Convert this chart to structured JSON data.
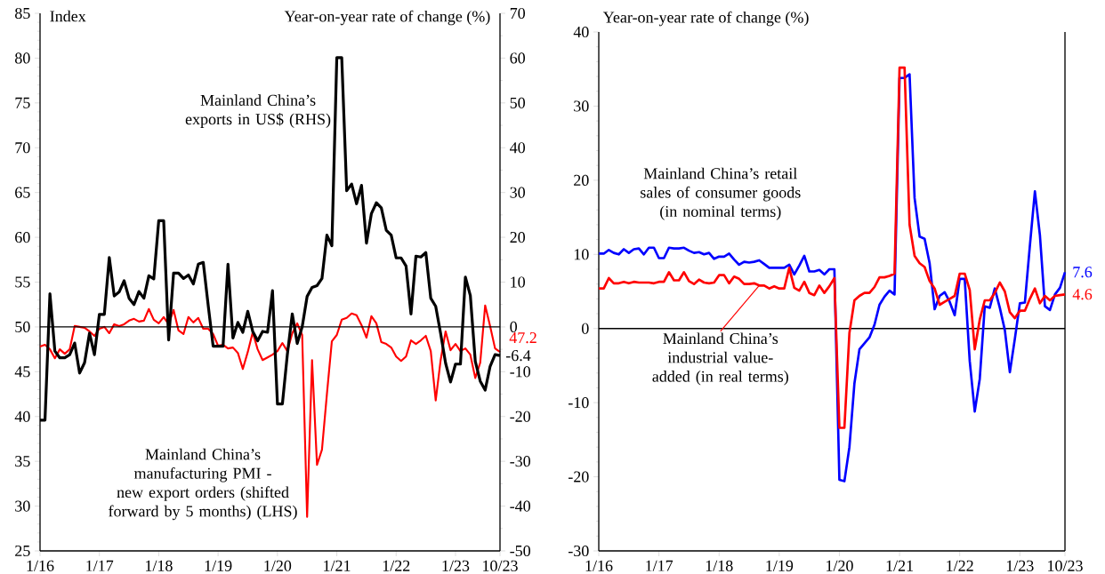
{
  "chart_data": [
    {
      "type": "line",
      "xlabel": null,
      "ylabel": "Index",
      "y2label": "Year-on-year rate of change (%)",
      "x": [
        "2016-01",
        "2016-02",
        "2016-03",
        "2016-04",
        "2016-05",
        "2016-06",
        "2016-07",
        "2016-08",
        "2016-09",
        "2016-10",
        "2016-11",
        "2016-12",
        "2017-01",
        "2017-02",
        "2017-03",
        "2017-04",
        "2017-05",
        "2017-06",
        "2017-07",
        "2017-08",
        "2017-09",
        "2017-10",
        "2017-11",
        "2017-12",
        "2018-01",
        "2018-02",
        "2018-03",
        "2018-04",
        "2018-05",
        "2018-06",
        "2018-07",
        "2018-08",
        "2018-09",
        "2018-10",
        "2018-11",
        "2018-12",
        "2019-01",
        "2019-02",
        "2019-03",
        "2019-04",
        "2019-05",
        "2019-06",
        "2019-07",
        "2019-08",
        "2019-09",
        "2019-10",
        "2019-11",
        "2019-12",
        "2020-01",
        "2020-02",
        "2020-03",
        "2020-04",
        "2020-05",
        "2020-06",
        "2020-07",
        "2020-08",
        "2020-09",
        "2020-10",
        "2020-11",
        "2020-12",
        "2021-01",
        "2021-02",
        "2021-03",
        "2021-04",
        "2021-05",
        "2021-06",
        "2021-07",
        "2021-08",
        "2021-09",
        "2021-10",
        "2021-11",
        "2021-12",
        "2022-01",
        "2022-02",
        "2022-03",
        "2022-04",
        "2022-05",
        "2022-06",
        "2022-07",
        "2022-08",
        "2022-09",
        "2022-10",
        "2022-11",
        "2022-12",
        "2023-01",
        "2023-02",
        "2023-03",
        "2023-04",
        "2023-05",
        "2023-06",
        "2023-07",
        "2023-08",
        "2023-09",
        "2023-10"
      ],
      "xlim": [
        "2016-01",
        "2023-10"
      ],
      "xticks": [
        {
          "value": "2016-01",
          "label": "1/16"
        },
        {
          "value": "2017-01",
          "label": "1/17"
        },
        {
          "value": "2018-01",
          "label": "1/18"
        },
        {
          "value": "2019-01",
          "label": "1/19"
        },
        {
          "value": "2020-01",
          "label": "1/20"
        },
        {
          "value": "2021-01",
          "label": "1/21"
        },
        {
          "value": "2022-01",
          "label": "1/22"
        },
        {
          "value": "2023-01",
          "label": "1/23"
        },
        {
          "value": "2023-10",
          "label": "10/23"
        }
      ],
      "ylim": [
        25,
        85
      ],
      "yticks": [
        25,
        30,
        35,
        40,
        45,
        50,
        55,
        60,
        65,
        70,
        75,
        80,
        85
      ],
      "y2lim": [
        -50,
        70
      ],
      "y2ticks": [
        -50,
        -40,
        -30,
        -20,
        -10,
        0,
        10,
        20,
        30,
        40,
        50,
        60,
        70
      ],
      "ref_lines": [
        {
          "axis": "y2",
          "value": 0,
          "color": "#000000"
        }
      ],
      "series": [
        {
          "name": "Mainland China’s exports in US$ (RHS)",
          "color": "#000000",
          "axis": "y2",
          "values": [
            -20.8,
            -20.8,
            7.4,
            -5.4,
            -6.9,
            -6.9,
            -6.2,
            -3.6,
            -10.3,
            -8,
            -1.4,
            -6.2,
            2.8,
            2.8,
            15.5,
            6.9,
            7.8,
            10.3,
            6.4,
            5,
            7.9,
            6.4,
            11.4,
            10.7,
            23.7,
            23.7,
            -2.9,
            12,
            12,
            10.8,
            11.6,
            9.6,
            14,
            14.4,
            4.8,
            -4.3,
            -4.3,
            -4.3,
            14,
            -2.5,
            1,
            -1.2,
            3.5,
            -1,
            -3.1,
            -1,
            -1.2,
            8.1,
            -17.2,
            -17.2,
            -6.2,
            2.9,
            -3.7,
            0,
            6.8,
            8.8,
            9.2,
            10.8,
            20.5,
            18.1,
            60.1,
            60.1,
            30.4,
            31.9,
            27.5,
            31.6,
            18.7,
            25.3,
            27.7,
            26.6,
            21.6,
            20.5,
            15.4,
            15.4,
            13.6,
            2.9,
            15.8,
            15.6,
            16.6,
            6.4,
            4.6,
            -1.5,
            -8.1,
            -12.3,
            -8.3,
            -8.3,
            11.1,
            7,
            -7.7,
            -12.1,
            -14.1,
            -8.8,
            -6.2,
            -6.4
          ],
          "value_labels": [
            null,
            null,
            null,
            null,
            null,
            null,
            null,
            null,
            null,
            null,
            null,
            null,
            null,
            null,
            null,
            null,
            null,
            null,
            null,
            null,
            null,
            null,
            null,
            null,
            null,
            null,
            null,
            null,
            null,
            null,
            null,
            null,
            null,
            null,
            null,
            null,
            null,
            null,
            null,
            null,
            null,
            null,
            null,
            null,
            null,
            null,
            null,
            null,
            null,
            null,
            null,
            null,
            null,
            null,
            null,
            null,
            null,
            null,
            null,
            null,
            null,
            null,
            null,
            null,
            null,
            null,
            null,
            null,
            null,
            null,
            null,
            null,
            null,
            null,
            null,
            null,
            null,
            null,
            null,
            null,
            null,
            null,
            null,
            null,
            null,
            null,
            null,
            null,
            null,
            null,
            null,
            null,
            null,
            "-6.4"
          ]
        },
        {
          "name": "Mainland China’s manufacturing PMI - new export orders (shifted forward by 5 months) (LHS)",
          "color": "#ff0000",
          "values": [
            47.8,
            48,
            47.5,
            46.5,
            47.5,
            47,
            47.5,
            50.1,
            50,
            49.9,
            49.5,
            49,
            49.8,
            50,
            49.3,
            50.3,
            50.1,
            50.3,
            50.7,
            50.9,
            50.6,
            50.7,
            52,
            50.8,
            50.4,
            51.1,
            50.3,
            51.9,
            49.6,
            49.2,
            51.1,
            50.5,
            51,
            49.8,
            49.8,
            49.2,
            47.9,
            48,
            47.6,
            47.7,
            47.1,
            45.3,
            47.2,
            49.4,
            47.5,
            46.3,
            46.6,
            46.9,
            47.3,
            48.2,
            47.3,
            49.3,
            50.4,
            49.1,
            28.8,
            46.3,
            34.6,
            36.3,
            42.5,
            48.4,
            49.1,
            50.8,
            51,
            51.5,
            51.3,
            50.2,
            48.8,
            51.2,
            50.4,
            48.3,
            48.1,
            47.7,
            46.7,
            46.2,
            46.7,
            48.5,
            48.1,
            48.5,
            49,
            47.3,
            41.8,
            46.3,
            49.5,
            47.4,
            48.1,
            47.3,
            47.6,
            46.9,
            44.3,
            46,
            52.4,
            50.1,
            47.6,
            47.2
          ],
          "value_labels": [
            null,
            null,
            null,
            null,
            null,
            null,
            null,
            null,
            null,
            null,
            null,
            null,
            null,
            null,
            null,
            null,
            null,
            null,
            null,
            null,
            null,
            null,
            null,
            null,
            null,
            null,
            null,
            null,
            null,
            null,
            null,
            null,
            null,
            null,
            null,
            null,
            null,
            null,
            null,
            null,
            null,
            null,
            null,
            null,
            null,
            null,
            null,
            null,
            null,
            null,
            null,
            null,
            null,
            null,
            null,
            null,
            null,
            null,
            null,
            null,
            null,
            null,
            null,
            null,
            null,
            null,
            null,
            null,
            null,
            null,
            null,
            null,
            null,
            null,
            null,
            null,
            null,
            null,
            null,
            null,
            null,
            null,
            null,
            null,
            null,
            null,
            null,
            null,
            null,
            null,
            null,
            null,
            null,
            "47.2"
          ]
        }
      ]
    },
    {
      "type": "line",
      "ylabel": "Year-on-year rate of change (%)",
      "x": [
        "2016-01",
        "2016-02",
        "2016-03",
        "2016-04",
        "2016-05",
        "2016-06",
        "2016-07",
        "2016-08",
        "2016-09",
        "2016-10",
        "2016-11",
        "2016-12",
        "2017-01",
        "2017-02",
        "2017-03",
        "2017-04",
        "2017-05",
        "2017-06",
        "2017-07",
        "2017-08",
        "2017-09",
        "2017-10",
        "2017-11",
        "2017-12",
        "2018-01",
        "2018-02",
        "2018-03",
        "2018-04",
        "2018-05",
        "2018-06",
        "2018-07",
        "2018-08",
        "2018-09",
        "2018-10",
        "2018-11",
        "2018-12",
        "2019-01",
        "2019-02",
        "2019-03",
        "2019-04",
        "2019-05",
        "2019-06",
        "2019-07",
        "2019-08",
        "2019-09",
        "2019-10",
        "2019-11",
        "2019-12",
        "2020-01",
        "2020-02",
        "2020-03",
        "2020-04",
        "2020-05",
        "2020-06",
        "2020-07",
        "2020-08",
        "2020-09",
        "2020-10",
        "2020-11",
        "2020-12",
        "2021-01",
        "2021-02",
        "2021-03",
        "2021-04",
        "2021-05",
        "2021-06",
        "2021-07",
        "2021-08",
        "2021-09",
        "2021-10",
        "2021-11",
        "2021-12",
        "2022-01",
        "2022-02",
        "2022-03",
        "2022-04",
        "2022-05",
        "2022-06",
        "2022-07",
        "2022-08",
        "2022-09",
        "2022-10",
        "2022-11",
        "2022-12",
        "2023-01",
        "2023-02",
        "2023-03",
        "2023-04",
        "2023-05",
        "2023-06",
        "2023-07",
        "2023-08",
        "2023-09",
        "2023-10"
      ],
      "xlim": [
        "2016-01",
        "2023-10"
      ],
      "xticks": [
        {
          "value": "2016-01",
          "label": "1/16"
        },
        {
          "value": "2017-01",
          "label": "1/17"
        },
        {
          "value": "2018-01",
          "label": "1/18"
        },
        {
          "value": "2019-01",
          "label": "1/19"
        },
        {
          "value": "2020-01",
          "label": "1/20"
        },
        {
          "value": "2021-01",
          "label": "1/21"
        },
        {
          "value": "2022-01",
          "label": "1/22"
        },
        {
          "value": "2023-01",
          "label": "1/23"
        },
        {
          "value": "2023-10",
          "label": "10/23"
        }
      ],
      "ylim": [
        -30,
        40
      ],
      "yticks": [
        -30,
        -20,
        -10,
        0,
        10,
        20,
        30,
        40
      ],
      "ref_lines": [
        {
          "axis": "y",
          "value": 0,
          "color": "#000000"
        }
      ],
      "series": [
        {
          "name": "Mainland China’s retail sales of consumer goods (in nominal terms)",
          "color": "#0000ff",
          "values": [
            10.1,
            10.1,
            10.6,
            10.2,
            10,
            10.7,
            10.2,
            10.7,
            10.8,
            10,
            10.9,
            10.9,
            9.5,
            9.5,
            10.9,
            10.8,
            10.8,
            10.9,
            10.5,
            10.2,
            10.3,
            10,
            10.2,
            9.4,
            9.7,
            9.7,
            10.1,
            9.3,
            8.6,
            9,
            8.9,
            9,
            9.2,
            8.7,
            8.2,
            8.2,
            8.2,
            8.2,
            8.6,
            7.3,
            8.5,
            9.8,
            7.7,
            7.7,
            7.9,
            7.3,
            8,
            8,
            -20.4,
            -20.6,
            -16,
            -7.4,
            -2.8,
            -2,
            -1.2,
            0.5,
            3.2,
            4.3,
            5.1,
            4.6,
            33.8,
            33.8,
            34.3,
            17.6,
            12.4,
            12.1,
            8.8,
            2.6,
            4.4,
            4.9,
            3.6,
            1.8,
            6.7,
            6.7,
            -4.4,
            -11.2,
            -6.8,
            3,
            2.8,
            5.4,
            2.8,
            -0.2,
            -5.9,
            -1.4,
            3.4,
            3.5,
            11.2,
            18.5,
            12.6,
            3,
            2.5,
            4.6,
            5.5,
            7.6
          ],
          "value_labels": [
            null,
            null,
            null,
            null,
            null,
            null,
            null,
            null,
            null,
            null,
            null,
            null,
            null,
            null,
            null,
            null,
            null,
            null,
            null,
            null,
            null,
            null,
            null,
            null,
            null,
            null,
            null,
            null,
            null,
            null,
            null,
            null,
            null,
            null,
            null,
            null,
            null,
            null,
            null,
            null,
            null,
            null,
            null,
            null,
            null,
            null,
            null,
            null,
            null,
            null,
            null,
            null,
            null,
            null,
            null,
            null,
            null,
            null,
            null,
            null,
            null,
            null,
            null,
            null,
            null,
            null,
            null,
            null,
            null,
            null,
            null,
            null,
            null,
            null,
            null,
            null,
            null,
            null,
            null,
            null,
            null,
            null,
            null,
            null,
            null,
            null,
            null,
            null,
            null,
            null,
            null,
            null,
            null,
            "7.6"
          ]
        },
        {
          "name": "Mainland China’s industrial value-added (in real terms)",
          "color": "#ff0000",
          "values": [
            5.4,
            5.4,
            6.8,
            6.1,
            6.1,
            6.3,
            6.1,
            6.3,
            6.2,
            6.2,
            6.2,
            6.1,
            6.3,
            6.3,
            7.6,
            6.5,
            6.5,
            7.6,
            6.4,
            6,
            6.6,
            6.2,
            6.1,
            6.2,
            7.2,
            7.2,
            6.1,
            7,
            6.7,
            6,
            6,
            6.1,
            5.8,
            5.8,
            5.4,
            5.7,
            5.4,
            5.4,
            8.2,
            5.5,
            5.1,
            6.3,
            4.8,
            4.5,
            5.8,
            4.8,
            5.7,
            6.8,
            -13.4,
            -13.4,
            -0.6,
            3.8,
            4.4,
            4.8,
            4.8,
            5.6,
            6.9,
            6.9,
            7.1,
            7.4,
            35.2,
            35.2,
            14,
            9.8,
            8.8,
            8.3,
            6.4,
            5.4,
            3.2,
            3.6,
            4,
            4.4,
            7.4,
            7.4,
            5.2,
            -2.8,
            1.2,
            3.8,
            3.8,
            4.8,
            6.2,
            5,
            2.2,
            1.4,
            2.4,
            2.4,
            4,
            5.4,
            3.4,
            4.4,
            3.8,
            4.4,
            4.5,
            4.6
          ],
          "value_labels": [
            null,
            null,
            null,
            null,
            null,
            null,
            null,
            null,
            null,
            null,
            null,
            null,
            null,
            null,
            null,
            null,
            null,
            null,
            null,
            null,
            null,
            null,
            null,
            null,
            null,
            null,
            null,
            null,
            null,
            null,
            null,
            null,
            null,
            null,
            null,
            null,
            null,
            null,
            null,
            null,
            null,
            null,
            null,
            null,
            null,
            null,
            null,
            null,
            null,
            null,
            null,
            null,
            null,
            null,
            null,
            null,
            null,
            null,
            null,
            null,
            null,
            null,
            null,
            null,
            null,
            null,
            null,
            null,
            null,
            null,
            null,
            null,
            null,
            null,
            null,
            null,
            null,
            null,
            null,
            null,
            null,
            null,
            null,
            null,
            null,
            null,
            null,
            null,
            null,
            null,
            null,
            null,
            null,
            "4.6"
          ]
        }
      ]
    }
  ]
}
